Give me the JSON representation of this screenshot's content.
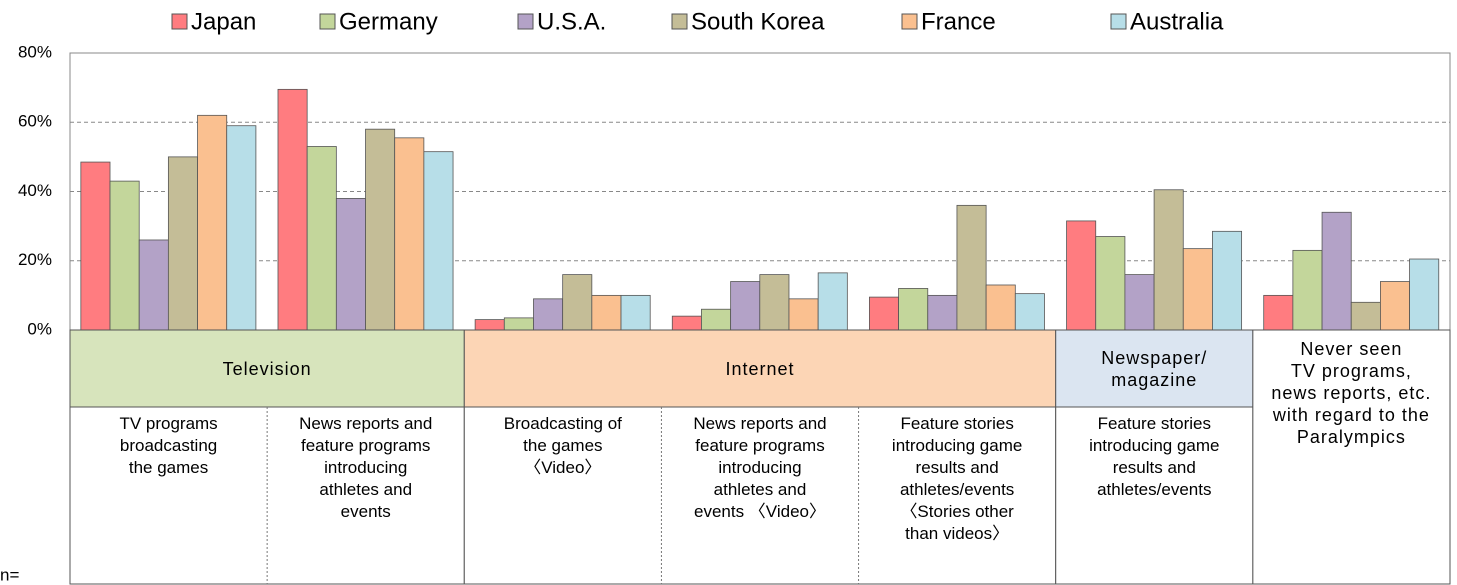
{
  "chart_data": {
    "type": "bar",
    "ylim": [
      0,
      80
    ],
    "yticks": [
      {
        "value": 0,
        "label": "0%"
      },
      {
        "value": 20,
        "label": "20%"
      },
      {
        "value": 40,
        "label": "40%"
      },
      {
        "value": 60,
        "label": "60%"
      },
      {
        "value": 80,
        "label": "80%"
      }
    ],
    "grid": true,
    "legend": "top",
    "groups": [
      {
        "name": "Television",
        "color": "#d7e4bc",
        "categories": [
          "TV programs\nbroadcasting\nthe games",
          "News reports and\nfeature programs\nintroducing\nathletes and\nevents"
        ]
      },
      {
        "name": "Internet",
        "color": "#fcd5b5",
        "categories": [
          "Broadcasting of\nthe games\n〈Video〉",
          "News reports and\nfeature programs\nintroducing\nathletes and\nevents 〈Video〉",
          "Feature stories\nintroducing game\nresults and\nathletes/events\n〈Stories other\nthan videos〉"
        ]
      },
      {
        "name": "Newspaper/\nmagazine",
        "color": "#dbe5f1",
        "categories": [
          "Feature stories\nintroducing game\nresults and\nathletes/events"
        ]
      },
      {
        "name": "Never seen\nTV programs,\nnews reports, etc.\nwith regard to the\nParalympics",
        "color": "#ffffff",
        "categories": [
          null
        ]
      }
    ],
    "series": [
      {
        "name": "Japan",
        "color": "#ff7c80",
        "values": [
          48.5,
          69.5,
          3,
          4,
          9.5,
          31.5,
          10
        ]
      },
      {
        "name": "Germany",
        "color": "#c3d69b",
        "values": [
          43,
          53,
          3.5,
          6,
          12,
          27,
          23
        ]
      },
      {
        "name": "U.S.A.",
        "color": "#b3a2c7",
        "values": [
          26,
          38,
          9,
          14,
          10,
          16,
          34
        ]
      },
      {
        "name": "South Korea",
        "color": "#c4bd97",
        "values": [
          50,
          58,
          16,
          16,
          36,
          40.5,
          8
        ]
      },
      {
        "name": "France",
        "color": "#fac090",
        "values": [
          62,
          55.5,
          10,
          9,
          13,
          23.5,
          14
        ]
      },
      {
        "name": "Australia",
        "color": "#b7dee8",
        "values": [
          59,
          51.5,
          10,
          16.5,
          10.5,
          28.5,
          20.5
        ]
      }
    ],
    "note": "n="
  }
}
